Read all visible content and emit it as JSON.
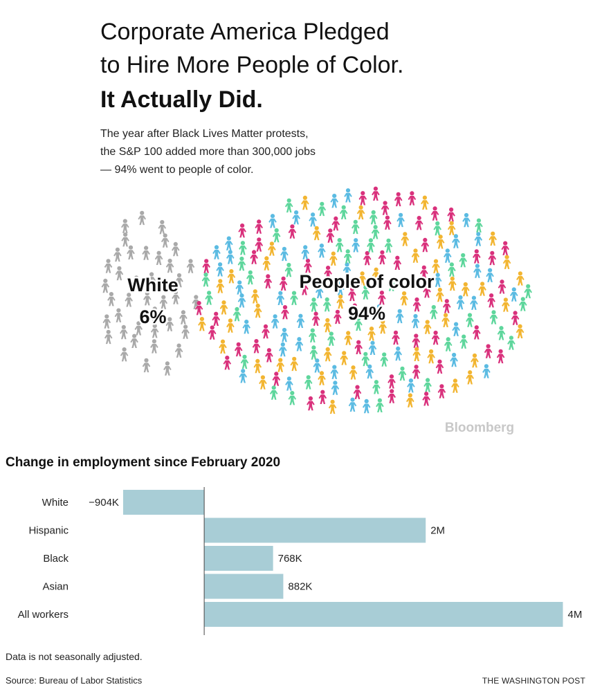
{
  "header": {
    "title_lines": [
      "Corporate America Pledged",
      "to Hire More People of Color."
    ],
    "title_bold": "It Actually Did.",
    "subtitle_lines": [
      "The year after Black Lives Matter protests,",
      "the S&P 100 added more than 300,000 jobs",
      "— 94% went to people of color."
    ]
  },
  "chart_data": [
    {
      "type": "pictogram",
      "categories": [
        "White",
        "People of color"
      ],
      "values": [
        6,
        94
      ],
      "value_labels": [
        "6%",
        "94%"
      ],
      "colors": [
        [
          "#a9a9a9"
        ],
        [
          "#f2b531",
          "#5ed69c",
          "#d9317c",
          "#5bbbe2"
        ]
      ],
      "credit": "Bloomberg"
    },
    {
      "type": "hbar",
      "title": "Change in employment since February 2020",
      "categories": [
        "White",
        "Hispanic",
        "Black",
        "Asian",
        "All workers"
      ],
      "values": [
        -904000,
        2470000,
        768000,
        882000,
        4000000
      ],
      "value_labels": [
        "−904K",
        "2M",
        "768K",
        "882K",
        "4M"
      ],
      "color": "#a8cdd6",
      "xlim": [
        -1000000,
        4000000
      ]
    }
  ],
  "footer": {
    "note": "Data is not seasonally adjusted.",
    "source": "Source: Bureau of Labor Statistics",
    "publisher": "THE WASHINGTON POST"
  }
}
